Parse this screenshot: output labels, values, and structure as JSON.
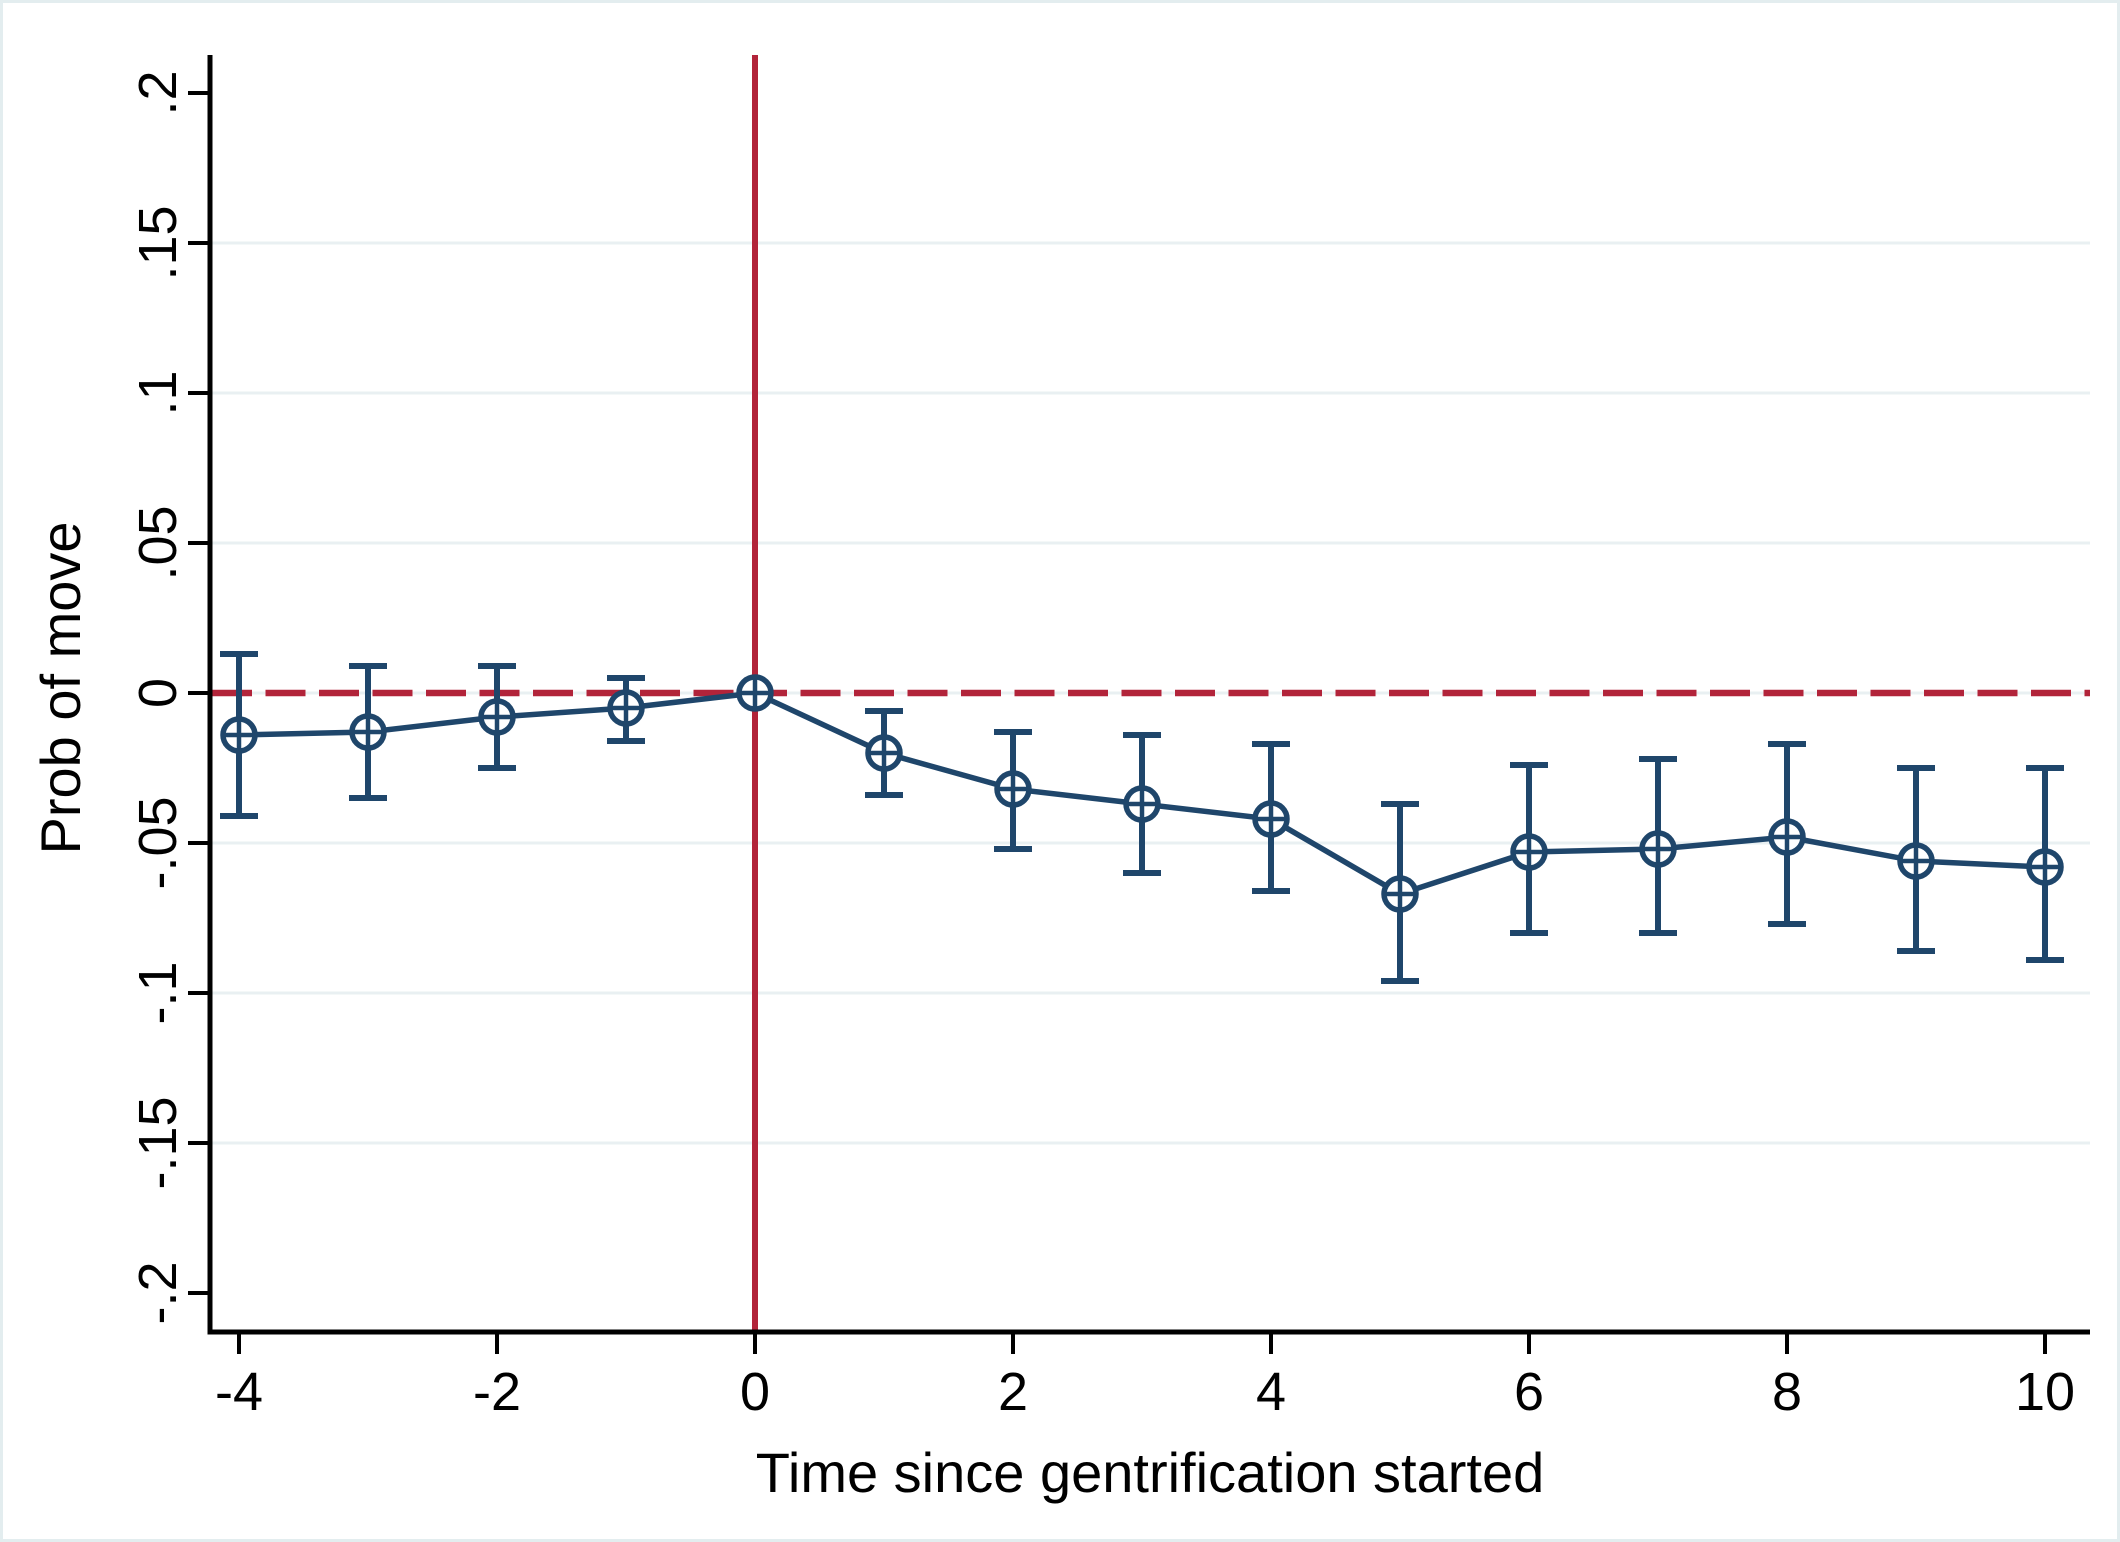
{
  "figure": {
    "background": "#ffffff",
    "border_color": "#e3edef"
  },
  "colors": {
    "series": "#1f466b",
    "reference": "#b2243a",
    "grid": "#e9f0f2",
    "axis": "#000000",
    "marker_fill": "#ffffff"
  },
  "chart_data": {
    "type": "line",
    "title": "",
    "xlabel": "Time since gentrification started",
    "ylabel": "Prob of move",
    "xlim": [
      -4,
      10
    ],
    "ylim": [
      -0.2,
      0.2
    ],
    "grid": "horizontal-only",
    "legend": "none",
    "marker_style": "circle-plus-with-error-bars",
    "x_ticks": {
      "values": [
        -4,
        -2,
        0,
        2,
        4,
        6,
        8,
        10
      ],
      "labels": [
        "-4",
        "-2",
        "0",
        "2",
        "4",
        "6",
        "8",
        "10"
      ]
    },
    "y_ticks": {
      "values": [
        0.2,
        0.15,
        0.1,
        0.05,
        0,
        -0.05,
        -0.1,
        -0.15,
        -0.2
      ],
      "labels": [
        ".2",
        ".15",
        ".1",
        ".05",
        "0",
        "-.05",
        "-.1",
        "-.15",
        "-.2"
      ]
    },
    "y_gridlines": [
      0.15,
      0.1,
      0.05,
      0,
      -0.05,
      -0.1,
      -0.15
    ],
    "reference_lines": [
      {
        "orientation": "horizontal",
        "value": 0,
        "style": "dashed"
      },
      {
        "orientation": "vertical",
        "value": 0,
        "style": "solid"
      }
    ],
    "series": [
      {
        "name": "event-study-estimates",
        "points": [
          {
            "t": -4,
            "estimate": -0.014,
            "ci_low": -0.041,
            "ci_high": 0.013
          },
          {
            "t": -3,
            "estimate": -0.013,
            "ci_low": -0.035,
            "ci_high": 0.009
          },
          {
            "t": -2,
            "estimate": -0.008,
            "ci_low": -0.025,
            "ci_high": 0.009
          },
          {
            "t": -1,
            "estimate": -0.005,
            "ci_low": -0.016,
            "ci_high": 0.005
          },
          {
            "t": 0,
            "estimate": 0.0,
            "ci_low": null,
            "ci_high": null
          },
          {
            "t": 1,
            "estimate": -0.02,
            "ci_low": -0.034,
            "ci_high": -0.006
          },
          {
            "t": 2,
            "estimate": -0.032,
            "ci_low": -0.052,
            "ci_high": -0.013
          },
          {
            "t": 3,
            "estimate": -0.037,
            "ci_low": -0.06,
            "ci_high": -0.014
          },
          {
            "t": 4,
            "estimate": -0.042,
            "ci_low": -0.066,
            "ci_high": -0.017
          },
          {
            "t": 5,
            "estimate": -0.067,
            "ci_low": -0.096,
            "ci_high": -0.037
          },
          {
            "t": 6,
            "estimate": -0.053,
            "ci_low": -0.08,
            "ci_high": -0.024
          },
          {
            "t": 7,
            "estimate": -0.052,
            "ci_low": -0.08,
            "ci_high": -0.022
          },
          {
            "t": 8,
            "estimate": -0.048,
            "ci_low": -0.077,
            "ci_high": -0.017
          },
          {
            "t": 9,
            "estimate": -0.056,
            "ci_low": -0.086,
            "ci_high": -0.025
          },
          {
            "t": 10,
            "estimate": -0.058,
            "ci_low": -0.089,
            "ci_high": -0.025
          }
        ]
      }
    ]
  }
}
